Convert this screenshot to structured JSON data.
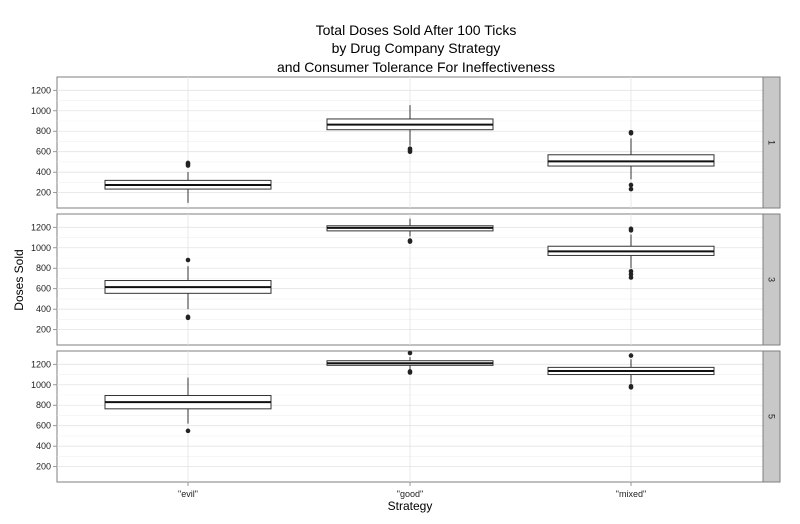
{
  "chart_data": {
    "type": "boxplot",
    "title": [
      "Total Doses Sold After 100 Ticks",
      "by Drug Company Strategy",
      "and Consumer Tolerance For Ineffectiveness"
    ],
    "xlabel": "Strategy",
    "ylabel": "Doses Sold",
    "categories": [
      "\"evil\"",
      "\"good\"",
      "\"mixed\""
    ],
    "facet_labels": [
      "1",
      "3",
      "5"
    ],
    "ylim": [
      50,
      1330
    ],
    "yticks": [
      200,
      400,
      600,
      800,
      1000,
      1200
    ],
    "grid": true,
    "panels": [
      {
        "facet": "1",
        "boxes": [
          {
            "category": "\"evil\"",
            "whisker_low": 100,
            "q1": 235,
            "median": 275,
            "q3": 320,
            "whisker_high": 400,
            "outliers": [
              465,
              480,
              490
            ]
          },
          {
            "category": "\"good\"",
            "whisker_low": 660,
            "q1": 815,
            "median": 865,
            "q3": 920,
            "whisker_high": 1055,
            "outliers": [
              600,
              615,
              630
            ]
          },
          {
            "category": "\"mixed\"",
            "whisker_low": 330,
            "q1": 460,
            "median": 505,
            "q3": 570,
            "whisker_high": 730,
            "outliers": [
              235,
              275,
              780,
              790
            ]
          }
        ]
      },
      {
        "facet": "3",
        "boxes": [
          {
            "category": "\"evil\"",
            "whisker_low": 400,
            "q1": 555,
            "median": 615,
            "q3": 680,
            "whisker_high": 820,
            "outliers": [
              315,
              325,
              880
            ]
          },
          {
            "category": "\"good\"",
            "whisker_low": 1110,
            "q1": 1165,
            "median": 1195,
            "q3": 1215,
            "whisker_high": 1285,
            "outliers": [
              1060,
              1070
            ]
          },
          {
            "category": "\"mixed\"",
            "whisker_low": 800,
            "q1": 925,
            "median": 965,
            "q3": 1015,
            "whisker_high": 1130,
            "outliers": [
              710,
              740,
              770,
              1170,
              1185
            ]
          }
        ]
      },
      {
        "facet": "5",
        "boxes": [
          {
            "category": "\"evil\"",
            "whisker_low": 620,
            "q1": 765,
            "median": 830,
            "q3": 895,
            "whisker_high": 1070,
            "outliers": [
              550
            ]
          },
          {
            "category": "\"good\"",
            "whisker_low": 1150,
            "q1": 1190,
            "median": 1210,
            "q3": 1235,
            "whisker_high": 1270,
            "outliers": [
              1120,
              1130,
              1310
            ]
          },
          {
            "category": "\"mixed\"",
            "whisker_low": 1010,
            "q1": 1100,
            "median": 1135,
            "q3": 1170,
            "whisker_high": 1250,
            "outliers": [
              975,
              985,
              1285
            ]
          }
        ]
      }
    ]
  }
}
